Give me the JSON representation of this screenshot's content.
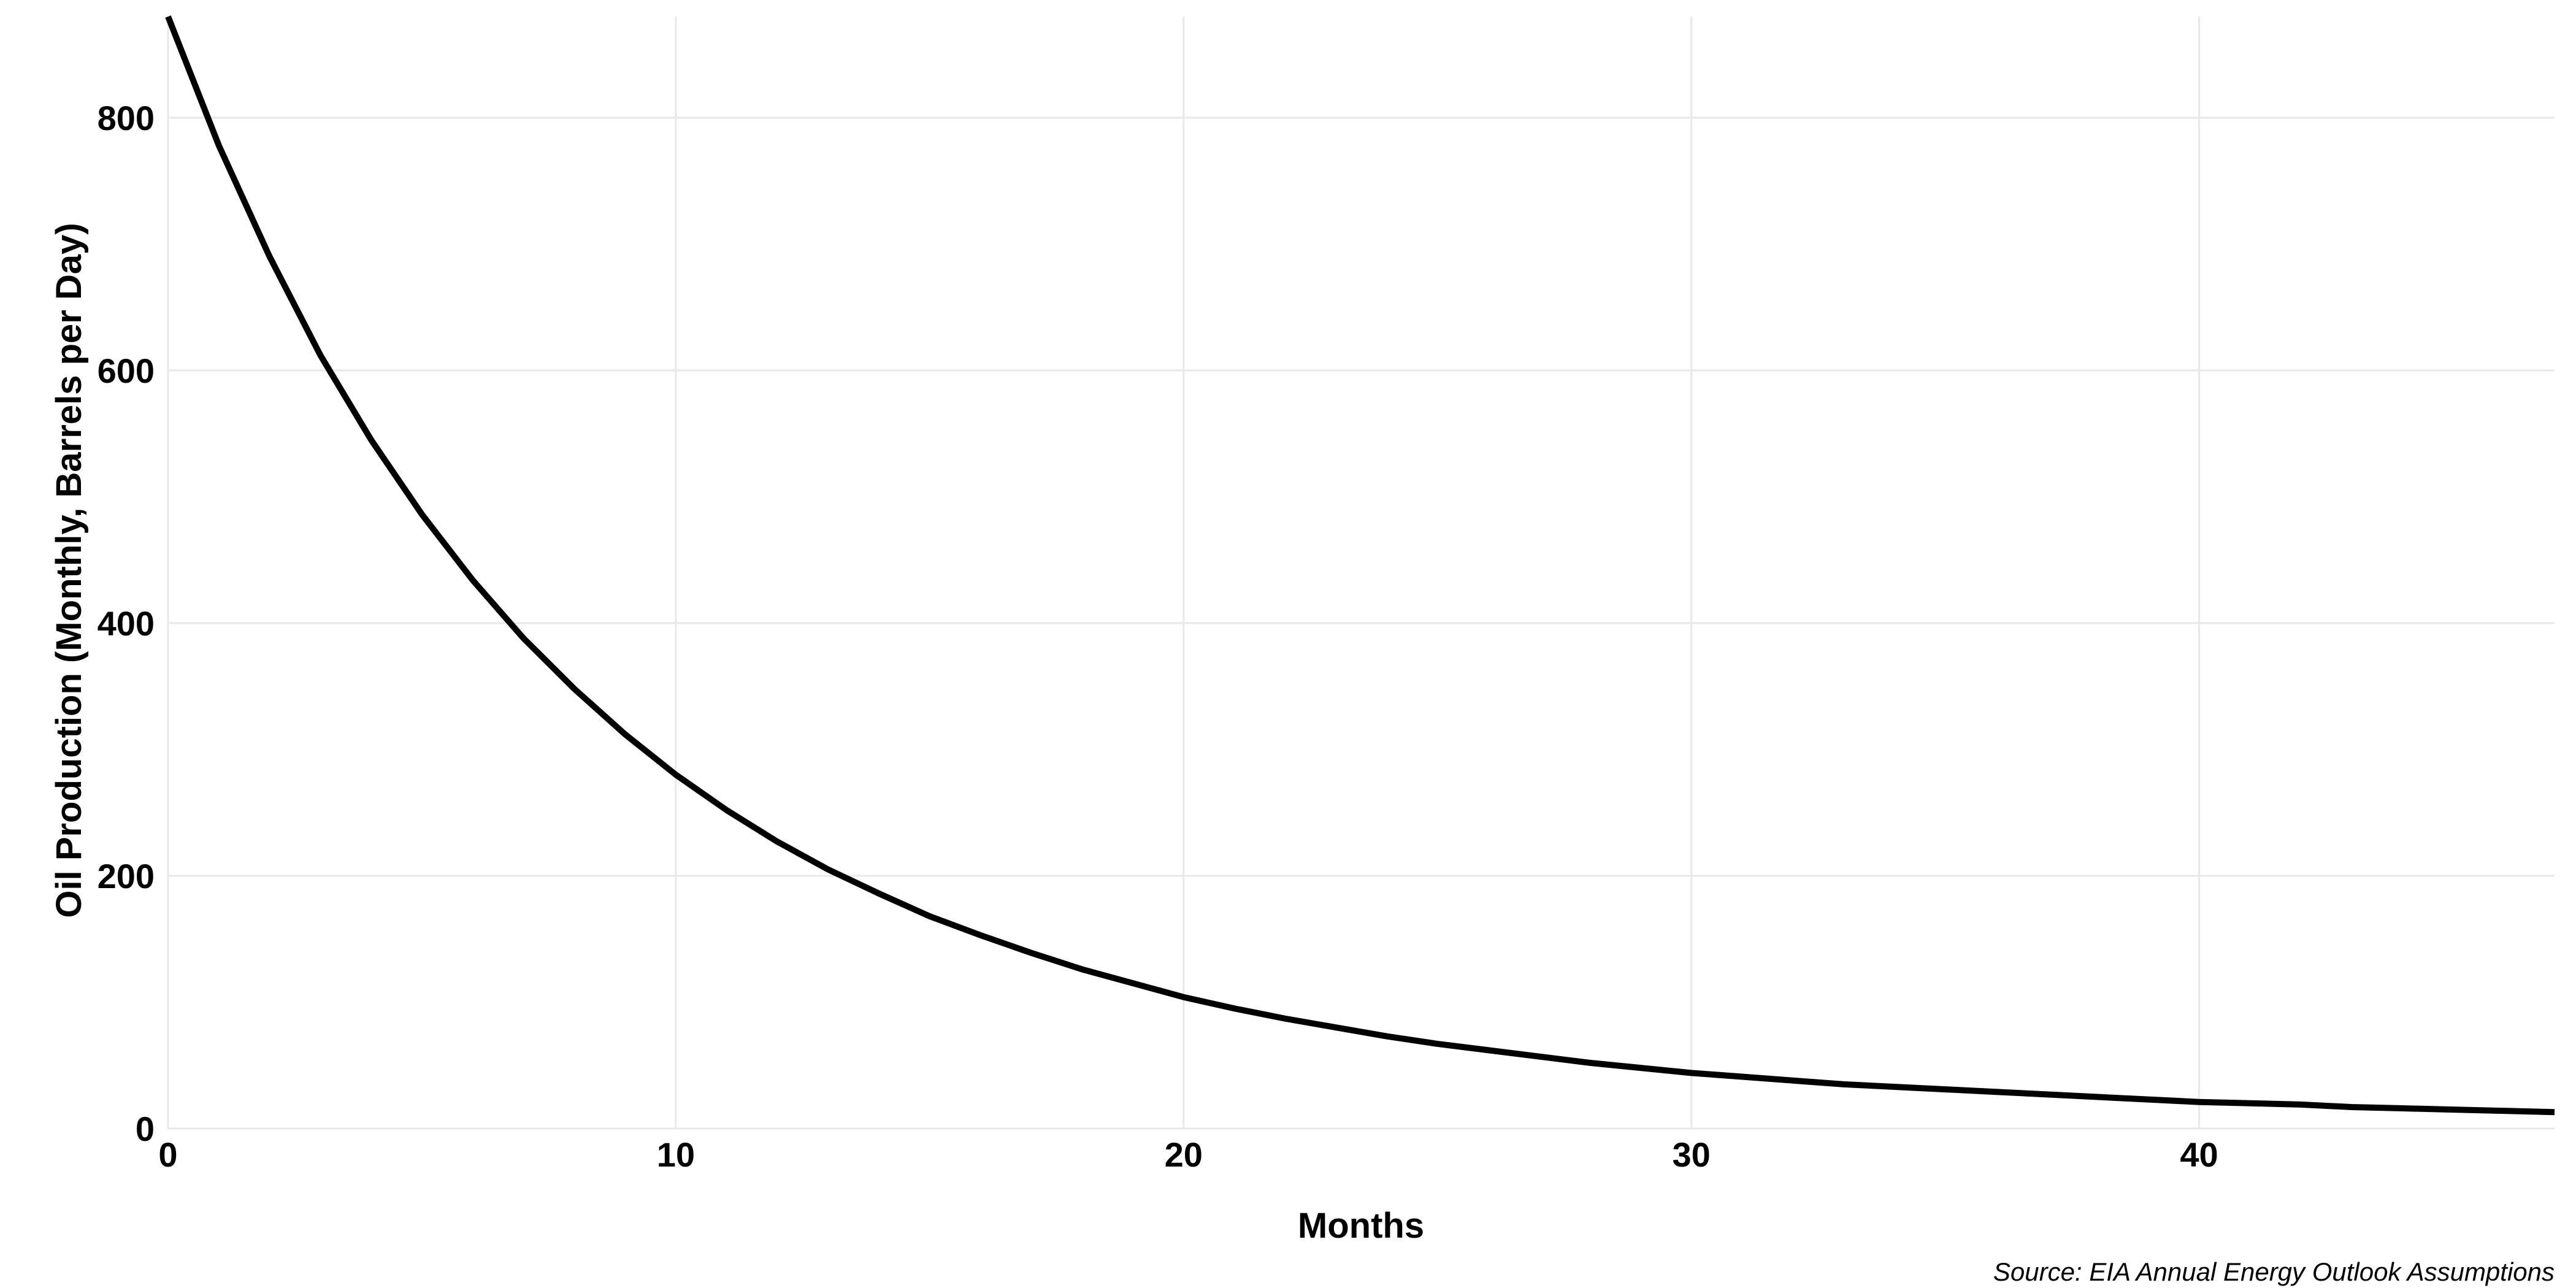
{
  "chart_data": {
    "type": "line",
    "x_label": "Months",
    "y_label": "Oil Production (Monthly, Barrels per Day)",
    "caption": "Source: EIA Annual Energy Outlook Assumptions",
    "x": [
      0,
      1,
      2,
      3,
      4,
      5,
      6,
      7,
      8,
      9,
      10,
      11,
      12,
      13,
      14,
      15,
      16,
      17,
      18,
      19,
      20,
      21,
      22,
      23,
      24,
      25,
      26,
      27,
      28,
      29,
      30,
      31,
      32,
      33,
      34,
      35,
      36,
      37,
      38,
      39,
      40,
      41,
      42,
      43,
      44,
      45,
      46,
      47
    ],
    "series": [
      {
        "name": "Oil Production",
        "color": "#000000",
        "values": [
          880,
          778,
          690,
          612,
          545,
          486,
          434,
          388,
          348,
          312,
          280,
          252,
          227,
          205,
          186,
          168,
          153,
          139,
          126,
          115,
          104,
          95,
          87,
          80,
          73,
          67,
          62,
          57,
          52,
          48,
          44,
          41,
          38,
          35,
          33,
          31,
          29,
          27,
          25,
          23,
          21,
          20,
          19,
          17,
          16,
          15,
          14,
          13
        ]
      }
    ],
    "xlim": [
      0,
      47
    ],
    "xticks": [
      0,
      10,
      20,
      30,
      40
    ],
    "ylim": [
      0,
      880
    ],
    "yticks": [
      0,
      200,
      400,
      600,
      800
    ],
    "grid": true
  }
}
